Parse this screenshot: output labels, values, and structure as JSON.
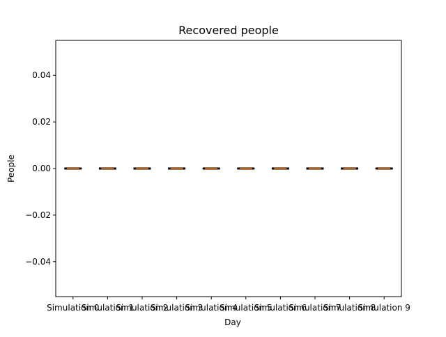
{
  "chart_data": {
    "type": "box",
    "title": "Recovered people",
    "xlabel": "Day",
    "ylabel": "People",
    "categories": [
      "Simulation 0",
      "Simulation 1",
      "Simulation 2",
      "Simulation 3",
      "Simulation 4",
      "Simulation 5",
      "Simulation 6",
      "Simulation 7",
      "Simulation 8",
      "Simulation 9"
    ],
    "values": [
      0,
      0,
      0,
      0,
      0,
      0,
      0,
      0,
      0,
      0
    ],
    "ylim": [
      -0.055,
      0.055
    ],
    "yticks": [
      -0.04,
      -0.02,
      0.0,
      0.02,
      0.04
    ],
    "ytick_labels": [
      "−0.04",
      "−0.02",
      "0.00",
      "0.02",
      "0.04"
    ],
    "grid": false,
    "colors": {
      "median": "#ff7f0e",
      "box": "#000000",
      "axes": "#000000",
      "background": "#ffffff"
    }
  }
}
